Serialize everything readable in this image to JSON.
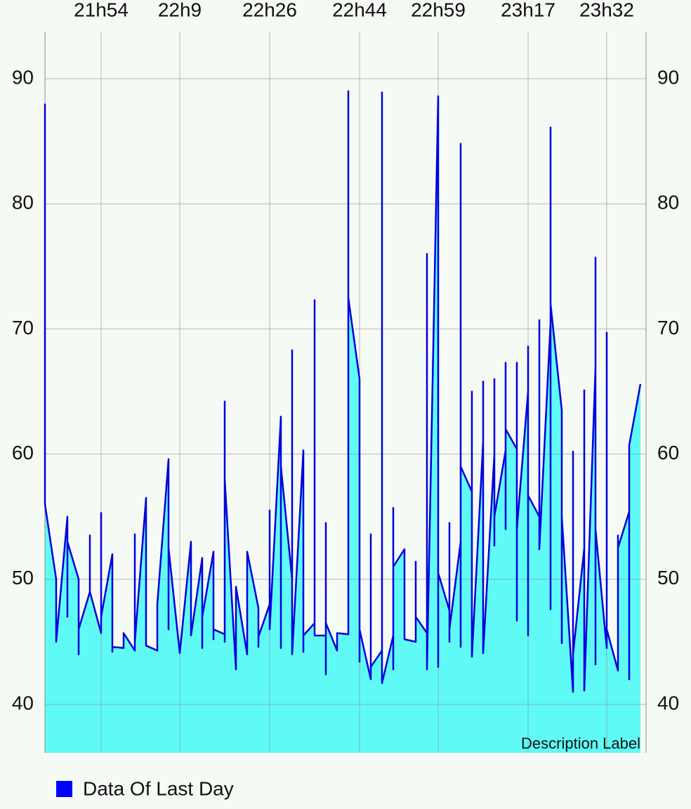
{
  "chart_data": {
    "type": "line",
    "description": "Description Label",
    "x": [
      0,
      0,
      1,
      1,
      2,
      2,
      2,
      3,
      3,
      3,
      4,
      4,
      4,
      5,
      5,
      5,
      6,
      6,
      6,
      7,
      7,
      8,
      8,
      8,
      9,
      9,
      10,
      10,
      11,
      11,
      11,
      12,
      13,
      13,
      14,
      14,
      14,
      15,
      15,
      15,
      16,
      16,
      16,
      16,
      17,
      17,
      18,
      18,
      19,
      19,
      19,
      20,
      20,
      20,
      21,
      21,
      21,
      22,
      22,
      22,
      23,
      23,
      23,
      24,
      24,
      24,
      25,
      25,
      25,
      25,
      26,
      26,
      27,
      27,
      27,
      28,
      28,
      28,
      29,
      29,
      29,
      30,
      30,
      30,
      31,
      31,
      31,
      31,
      32,
      32,
      33,
      33,
      33,
      34,
      34,
      34,
      35,
      35,
      35,
      36,
      36,
      36,
      36,
      37,
      37,
      37,
      37,
      38,
      38,
      38,
      39,
      39,
      39,
      40,
      40,
      40,
      40,
      41,
      41,
      41,
      41,
      42,
      42,
      42,
      42,
      43,
      43,
      43,
      43,
      44,
      44,
      44,
      45,
      45,
      45,
      45,
      46,
      46,
      46,
      47,
      47,
      47,
      48,
      48,
      48,
      49,
      49,
      49,
      49,
      50,
      50,
      50,
      51,
      51,
      51,
      52,
      52,
      52,
      53
    ],
    "series": [
      {
        "name": "Data Of Last Day",
        "color": "#0000dd",
        "fill": "#5ffaf5",
        "legend_color": "#0000ff",
        "values": [
          88,
          56,
          50,
          45,
          55,
          47,
          53,
          50,
          44,
          46,
          49,
          53.5,
          49,
          45.7,
          55.3,
          47,
          52,
          44.2,
          44.6,
          44.5,
          45.7,
          44.3,
          53.6,
          45,
          56.5,
          44.7,
          44.3,
          48,
          59.6,
          46,
          52.5,
          44.1,
          53,
          45.5,
          51.7,
          44.5,
          47,
          52.2,
          45.2,
          46,
          45.6,
          64.2,
          45,
          58,
          42.8,
          49.4,
          44,
          52.2,
          47.7,
          44.6,
          45.4,
          48,
          55.5,
          46,
          63,
          44.5,
          59,
          50,
          68.3,
          44,
          60.3,
          44.2,
          45.5,
          46.5,
          72.3,
          45.5,
          45.5,
          54.5,
          42.4,
          46.5,
          44.3,
          45.7,
          45.6,
          89,
          72.5,
          66,
          43.4,
          46,
          42,
          53.6,
          43,
          44.3,
          88.9,
          41.7,
          45.5,
          55.7,
          42.8,
          51,
          52.4,
          45.2,
          45,
          51.4,
          47,
          45.7,
          76,
          42.8,
          88.6,
          43,
          50.5,
          47.5,
          54.5,
          45,
          46,
          53,
          84.8,
          44.6,
          59,
          57,
          65,
          43.8,
          61,
          65.8,
          44.1,
          60,
          66,
          52.7,
          55,
          60.3,
          67.3,
          54,
          62,
          60.4,
          67.3,
          46.7,
          54,
          65,
          68.6,
          45.5,
          56.7,
          55,
          70.7,
          52.4,
          70.5,
          86.1,
          47.6,
          72,
          63.5,
          44.9,
          55,
          41,
          60.2,
          44,
          52.5,
          65.1,
          41.1,
          67,
          75.7,
          43.2,
          54,
          44.5,
          69.7,
          46,
          42.7,
          53.5,
          52.5,
          55.4,
          42,
          60.7,
          65.6
        ]
      }
    ],
    "xlim": [
      0,
      53.5
    ],
    "xticks": [
      {
        "value": 5,
        "label": "21h54"
      },
      {
        "value": 12,
        "label": "22h9"
      },
      {
        "value": 20,
        "label": "22h26"
      },
      {
        "value": 28,
        "label": "22h44"
      },
      {
        "value": 35,
        "label": "22h59"
      },
      {
        "value": 43,
        "label": "23h17"
      },
      {
        "value": 50,
        "label": "23h32"
      }
    ],
    "ylim": [
      36.13,
      93.76
    ],
    "yticks": [
      40,
      50,
      60,
      70,
      80,
      90
    ],
    "grid": true,
    "legend": "bottom-left"
  }
}
